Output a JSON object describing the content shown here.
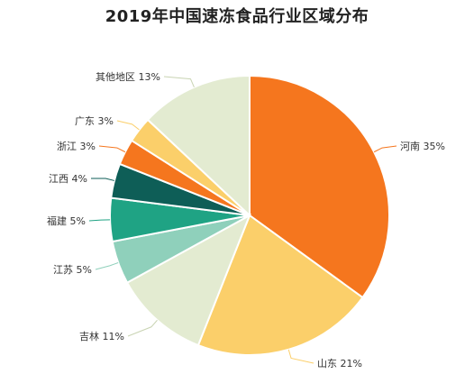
{
  "chart_data": {
    "type": "pie",
    "title": "2019年中国速冻食品行业区域分布",
    "slices": [
      {
        "name": "河南",
        "value": 35,
        "label": "河南 35%",
        "color": "#f5761e"
      },
      {
        "name": "山东",
        "value": 21,
        "label": "山东 21%",
        "color": "#fbcf6a"
      },
      {
        "name": "吉林",
        "value": 11,
        "label": "吉林 11%",
        "color": "#e3ebd1"
      },
      {
        "name": "江苏",
        "value": 5,
        "label": "江苏 5%",
        "color": "#8fd0bb"
      },
      {
        "name": "福建",
        "value": 5,
        "label": "福建 5%",
        "color": "#1fa384"
      },
      {
        "name": "江西",
        "value": 4,
        "label": "江西 4%",
        "color": "#0e5e57"
      },
      {
        "name": "浙江",
        "value": 3,
        "label": "浙江 3%",
        "color": "#f5761e"
      },
      {
        "name": "广东",
        "value": 3,
        "label": "广东 3%",
        "color": "#fbcf6a"
      },
      {
        "name": "其他地区",
        "value": 13,
        "label": "其他地区 13%",
        "color": "#e3ebd1"
      }
    ]
  }
}
